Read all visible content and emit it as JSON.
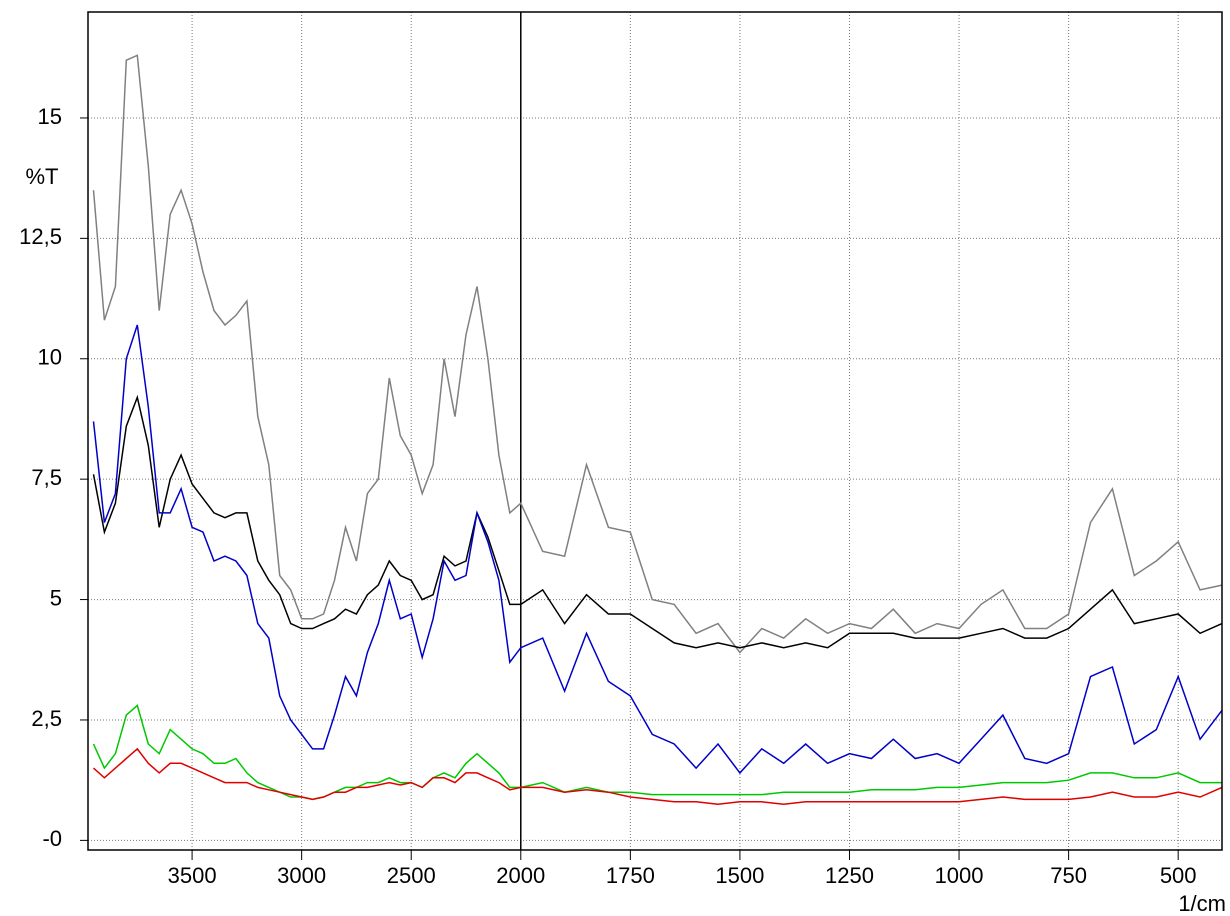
{
  "chart_data": {
    "type": "line",
    "ylabel": "%T",
    "xlabel": "1/cm",
    "xlim": [
      3975,
      400
    ],
    "x_scale_change": 2000,
    "x_scale_ratio": 2,
    "ylim": [
      -0.2,
      17.2
    ],
    "grid": true,
    "xticks": [
      3500,
      3000,
      2500,
      2000,
      1750,
      1500,
      1250,
      1000,
      750,
      500
    ],
    "yticks": [
      {
        "value": 0,
        "label": "-0"
      },
      {
        "value": 2.5,
        "label": "2,5"
      },
      5,
      {
        "value": 7.5,
        "label": "7,5"
      },
      10,
      {
        "value": 12.5,
        "label": "12,5"
      },
      15
    ],
    "x": [
      3950,
      3900,
      3850,
      3800,
      3750,
      3700,
      3650,
      3600,
      3550,
      3500,
      3450,
      3400,
      3350,
      3300,
      3250,
      3200,
      3150,
      3100,
      3050,
      3000,
      2950,
      2900,
      2850,
      2800,
      2750,
      2700,
      2650,
      2600,
      2550,
      2500,
      2450,
      2400,
      2350,
      2300,
      2250,
      2200,
      2150,
      2100,
      2050,
      2000,
      1950,
      1900,
      1850,
      1800,
      1750,
      1700,
      1650,
      1600,
      1550,
      1500,
      1450,
      1400,
      1350,
      1300,
      1250,
      1200,
      1150,
      1100,
      1050,
      1000,
      950,
      900,
      850,
      800,
      750,
      700,
      650,
      600,
      550,
      500,
      450,
      400
    ],
    "series": [
      {
        "color": "#808080",
        "values": [
          13.5,
          10.8,
          11.5,
          16.2,
          16.3,
          14.0,
          11.0,
          13.0,
          13.5,
          12.8,
          11.8,
          11.0,
          10.7,
          10.9,
          11.2,
          8.8,
          7.8,
          5.5,
          5.2,
          4.6,
          4.6,
          4.7,
          5.4,
          6.5,
          5.8,
          7.2,
          7.5,
          9.6,
          8.4,
          8.0,
          7.2,
          7.8,
          10.0,
          8.8,
          10.5,
          11.5,
          10.0,
          8.0,
          6.8,
          7.0,
          6.0,
          5.9,
          7.8,
          6.5,
          6.4,
          5.0,
          4.9,
          4.3,
          4.5,
          3.9,
          4.4,
          4.2,
          4.6,
          4.3,
          4.5,
          4.4,
          4.8,
          4.3,
          4.5,
          4.4,
          4.9,
          5.2,
          4.4,
          4.4,
          4.7,
          6.6,
          7.3,
          5.5,
          5.8,
          6.2,
          5.2,
          5.3
        ]
      },
      {
        "color": "#000000",
        "values": [
          7.6,
          6.4,
          7.0,
          8.6,
          9.2,
          8.2,
          6.5,
          7.5,
          8.0,
          7.4,
          7.1,
          6.8,
          6.7,
          6.8,
          6.8,
          5.8,
          5.4,
          5.1,
          4.5,
          4.4,
          4.4,
          4.5,
          4.6,
          4.8,
          4.7,
          5.1,
          5.3,
          5.8,
          5.5,
          5.4,
          5.0,
          5.1,
          5.9,
          5.7,
          5.8,
          6.8,
          6.3,
          5.6,
          4.9,
          4.9,
          5.2,
          4.5,
          5.1,
          4.7,
          4.7,
          4.4,
          4.1,
          4.0,
          4.1,
          4.0,
          4.1,
          4.0,
          4.1,
          4.0,
          4.3,
          4.3,
          4.3,
          4.2,
          4.2,
          4.2,
          4.3,
          4.4,
          4.2,
          4.2,
          4.4,
          4.8,
          5.2,
          4.5,
          4.6,
          4.7,
          4.3,
          4.5
        ]
      },
      {
        "color": "#0000c8",
        "values": [
          8.7,
          6.6,
          7.2,
          10.0,
          10.7,
          9.0,
          6.8,
          6.8,
          7.3,
          6.5,
          6.4,
          5.8,
          5.9,
          5.8,
          5.5,
          4.5,
          4.2,
          3.0,
          2.5,
          2.2,
          1.9,
          1.9,
          2.6,
          3.4,
          3.0,
          3.9,
          4.5,
          5.4,
          4.6,
          4.7,
          3.8,
          4.6,
          5.8,
          5.4,
          5.5,
          6.8,
          6.2,
          5.4,
          3.7,
          4.0,
          4.2,
          3.1,
          4.3,
          3.3,
          3.0,
          2.2,
          2.0,
          1.5,
          2.0,
          1.4,
          1.9,
          1.6,
          2.0,
          1.6,
          1.8,
          1.7,
          2.1,
          1.7,
          1.8,
          1.6,
          2.1,
          2.6,
          1.7,
          1.6,
          1.8,
          3.4,
          3.6,
          2.0,
          2.3,
          3.4,
          2.1,
          2.7
        ]
      },
      {
        "color": "#00c800",
        "values": [
          2.0,
          1.5,
          1.8,
          2.6,
          2.8,
          2.0,
          1.8,
          2.3,
          2.1,
          1.9,
          1.8,
          1.6,
          1.6,
          1.7,
          1.4,
          1.2,
          1.1,
          1.0,
          0.9,
          0.9,
          0.85,
          0.9,
          1.0,
          1.1,
          1.1,
          1.2,
          1.2,
          1.3,
          1.2,
          1.2,
          1.1,
          1.3,
          1.4,
          1.3,
          1.6,
          1.8,
          1.6,
          1.4,
          1.1,
          1.1,
          1.2,
          1.0,
          1.1,
          1.0,
          1.0,
          0.95,
          0.95,
          0.95,
          0.95,
          0.95,
          0.95,
          1.0,
          1.0,
          1.0,
          1.0,
          1.05,
          1.05,
          1.05,
          1.1,
          1.1,
          1.15,
          1.2,
          1.2,
          1.2,
          1.25,
          1.4,
          1.4,
          1.3,
          1.3,
          1.4,
          1.2,
          1.2
        ]
      },
      {
        "color": "#e00000",
        "values": [
          1.5,
          1.3,
          1.5,
          1.7,
          1.9,
          1.6,
          1.4,
          1.6,
          1.6,
          1.5,
          1.4,
          1.3,
          1.2,
          1.2,
          1.2,
          1.1,
          1.05,
          1.0,
          0.95,
          0.9,
          0.85,
          0.9,
          1.0,
          1.0,
          1.1,
          1.1,
          1.15,
          1.2,
          1.15,
          1.2,
          1.1,
          1.3,
          1.3,
          1.2,
          1.4,
          1.4,
          1.3,
          1.2,
          1.05,
          1.1,
          1.1,
          1.0,
          1.05,
          1.0,
          0.9,
          0.85,
          0.8,
          0.8,
          0.75,
          0.8,
          0.8,
          0.75,
          0.8,
          0.8,
          0.8,
          0.8,
          0.8,
          0.8,
          0.8,
          0.8,
          0.85,
          0.9,
          0.85,
          0.85,
          0.85,
          0.9,
          1.0,
          0.9,
          0.9,
          1.0,
          0.9,
          1.1
        ]
      }
    ]
  }
}
